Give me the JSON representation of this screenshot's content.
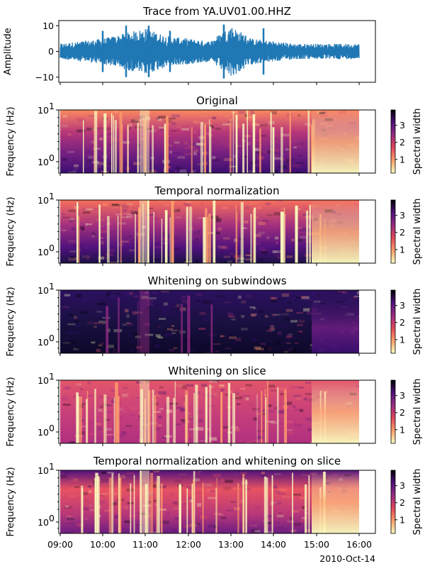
{
  "chart_data": [
    {
      "type": "line",
      "title": "Trace from YA.UV01.00.HHZ",
      "ylabel": "Amplitude",
      "ylim": [
        -12,
        12
      ],
      "y_ticks": [
        "10",
        "0",
        "−10"
      ],
      "y_tick_values": [
        10,
        0,
        -10
      ],
      "series": [
        {
          "color": "#1f77b4",
          "x": [
            "09:00",
            "09:30",
            "10:00",
            "10:30",
            "11:00",
            "11:30",
            "12:00",
            "12:30",
            "13:00",
            "13:30",
            "14:00",
            "14:30",
            "15:00",
            "15:30",
            "16:00"
          ],
          "envelope": [
            3,
            4,
            5,
            7,
            9,
            6,
            5,
            4,
            10,
            5,
            4,
            3,
            3,
            3,
            3
          ]
        }
      ]
    },
    {
      "type": "heatmap",
      "title": "Original",
      "ylabel": "Frequency (Hz)",
      "y_scale": "log",
      "y_ticks": [
        "10",
        "10"
      ],
      "y_tick_sups": [
        "1",
        "0"
      ],
      "colorbar_label": "Spectral width",
      "colorbar_ticks": [
        "3",
        "2",
        "1"
      ],
      "colormap": "magma_r"
    },
    {
      "type": "heatmap",
      "title": "Temporal normalization",
      "ylabel": "Frequency (Hz)",
      "y_scale": "log",
      "y_ticks": [
        "10",
        "10"
      ],
      "y_tick_sups": [
        "1",
        "0"
      ],
      "colorbar_label": "Spectral width",
      "colorbar_ticks": [
        "3",
        "2",
        "1"
      ],
      "colormap": "magma_r"
    },
    {
      "type": "heatmap",
      "title": "Whitening on subwindows",
      "ylabel": "Frequency (Hz)",
      "y_scale": "log",
      "y_ticks": [
        "10",
        "10"
      ],
      "y_tick_sups": [
        "1",
        "0"
      ],
      "colorbar_label": "Spectral width",
      "colorbar_ticks": [
        "3",
        "2",
        "1"
      ],
      "colormap": "magma_r"
    },
    {
      "type": "heatmap",
      "title": "Whitening on slice",
      "ylabel": "Frequency (Hz)",
      "y_scale": "log",
      "y_ticks": [
        "10",
        "10"
      ],
      "y_tick_sups": [
        "1",
        "0"
      ],
      "colorbar_label": "Spectral width",
      "colorbar_ticks": [
        "3",
        "2",
        "1"
      ],
      "colormap": "magma_r"
    },
    {
      "type": "heatmap",
      "title": "Temporal normalization and whitening on slice",
      "ylabel": "Frequency (Hz)",
      "y_scale": "log",
      "y_ticks": [
        "10",
        "10"
      ],
      "y_tick_sups": [
        "1",
        "0"
      ],
      "colorbar_label": "Spectral width",
      "colorbar_ticks": [
        "3",
        "2",
        "1"
      ],
      "colormap": "magma_r"
    }
  ],
  "x_axis": {
    "tick_labels": [
      "09:00",
      "10:00",
      "11:00",
      "12:00",
      "13:00",
      "14:00",
      "15:00",
      "16:00"
    ],
    "date_label": "2010-Oct-14"
  }
}
